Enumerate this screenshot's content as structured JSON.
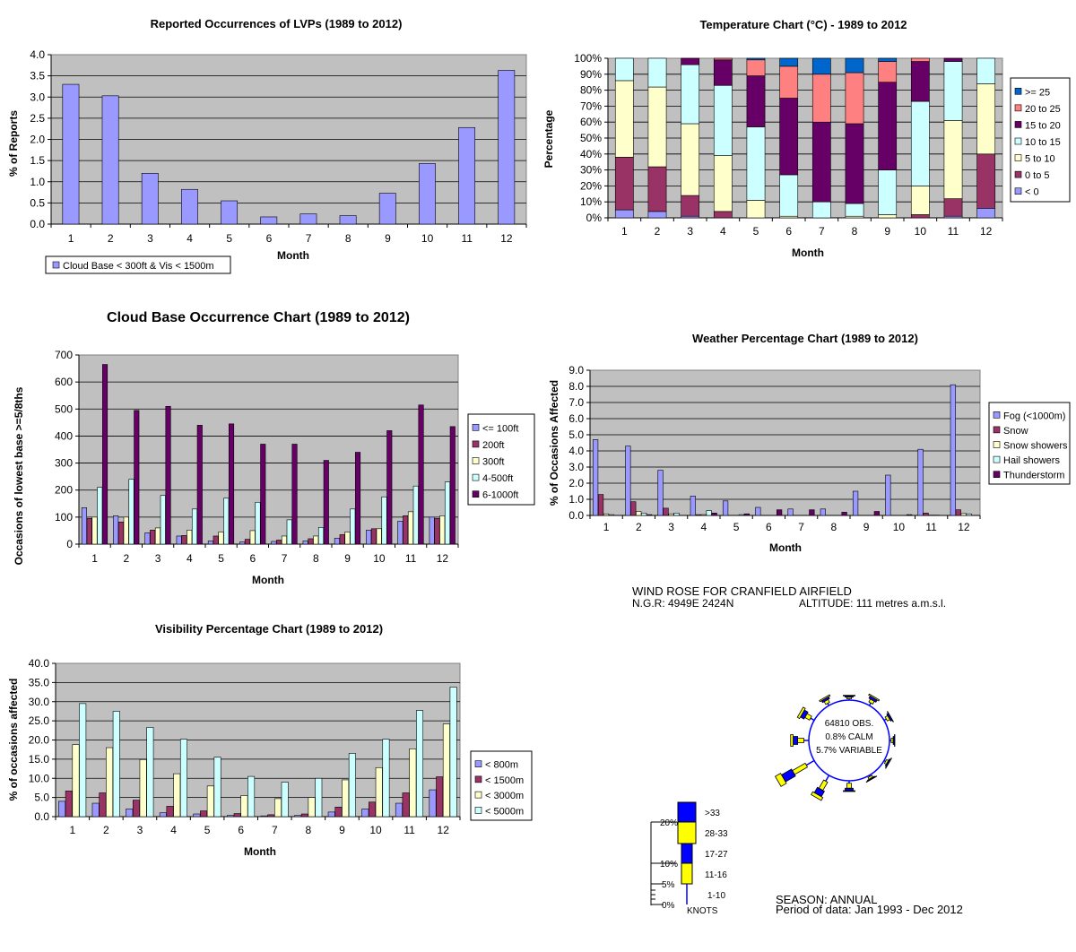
{
  "chart_data": [
    {
      "type": "bar",
      "title": "Reported Occurrences of LVPs (1989 to 2012)",
      "xlabel": "Month",
      "ylabel": "% of Reports",
      "categories": [
        "1",
        "2",
        "3",
        "4",
        "5",
        "6",
        "7",
        "8",
        "9",
        "10",
        "11",
        "12"
      ],
      "ylim": [
        0,
        4.0
      ],
      "yticks": [
        "0.0",
        "0.5",
        "1.0",
        "1.5",
        "2.0",
        "2.5",
        "3.0",
        "3.5",
        "4.0"
      ],
      "series": [
        {
          "name": "Cloud Base < 300ft & Vis < 1500m",
          "color": "#9999ff",
          "values": [
            3.3,
            3.03,
            1.2,
            0.82,
            0.55,
            0.17,
            0.24,
            0.2,
            0.73,
            1.43,
            2.28,
            3.63
          ]
        }
      ],
      "grid": true,
      "legend": "bottom-left"
    },
    {
      "type": "bar",
      "stacked": true,
      "title": "Temperature Chart (°C) - 1989 to 2012",
      "xlabel": "Month",
      "ylabel": "Percentage",
      "categories": [
        "1",
        "2",
        "3",
        "4",
        "5",
        "6",
        "7",
        "8",
        "9",
        "10",
        "11",
        "12"
      ],
      "ylim": [
        0,
        100
      ],
      "yticks": [
        "0%",
        "10%",
        "20%",
        "30%",
        "40%",
        "50%",
        "60%",
        "70%",
        "80%",
        "90%",
        "100%"
      ],
      "series": [
        {
          "name": "< 0",
          "color": "#9999ff",
          "values": [
            5,
            4,
            1,
            0,
            0,
            0,
            0,
            0,
            0,
            0,
            1,
            6
          ]
        },
        {
          "name": "0 to 5",
          "color": "#993366",
          "values": [
            33,
            28,
            13,
            4,
            0,
            0,
            0,
            0,
            0,
            2,
            11,
            34
          ]
        },
        {
          "name": "5 to 10",
          "color": "#ffffcc",
          "values": [
            48,
            50,
            45,
            35,
            11,
            1,
            0,
            1,
            2,
            18,
            49,
            44
          ]
        },
        {
          "name": "10 to 15",
          "color": "#ccffff",
          "values": [
            14,
            18,
            37,
            44,
            46,
            26,
            10,
            8,
            28,
            53,
            37,
            16
          ]
        },
        {
          "name": "15 to 20",
          "color": "#660066",
          "values": [
            0,
            0,
            4,
            16,
            32,
            48,
            50,
            50,
            55,
            25,
            2,
            0
          ]
        },
        {
          "name": "20 to 25",
          "color": "#ff8080",
          "values": [
            0,
            0,
            0,
            1,
            10,
            20,
            30,
            32,
            13,
            2,
            0,
            0
          ]
        },
        {
          "name": ">= 25",
          "color": "#0066cc",
          "values": [
            0,
            0,
            0,
            0,
            1,
            5,
            10,
            9,
            2,
            0,
            0,
            0
          ]
        }
      ],
      "legend_order": [
        ">= 25",
        "20 to 25",
        "15 to 20",
        "10 to 15",
        "5 to 10",
        "0 to 5",
        "< 0"
      ],
      "grid": true,
      "legend": "right"
    },
    {
      "type": "bar",
      "title": "Cloud Base Occurrence Chart (1989 to 2012)",
      "xlabel": "Month",
      "ylabel": "Occasions of lowest base >=5/8ths",
      "categories": [
        "1",
        "2",
        "3",
        "4",
        "5",
        "6",
        "7",
        "8",
        "9",
        "10",
        "11",
        "12"
      ],
      "ylim": [
        0,
        700
      ],
      "yticks": [
        "0",
        "100",
        "200",
        "300",
        "400",
        "500",
        "600",
        "700"
      ],
      "series": [
        {
          "name": "<= 100ft",
          "color": "#9999ff",
          "values": [
            135,
            105,
            42,
            30,
            12,
            8,
            10,
            12,
            22,
            52,
            85,
            100
          ]
        },
        {
          "name": "200ft",
          "color": "#993366",
          "values": [
            95,
            82,
            52,
            32,
            30,
            18,
            15,
            20,
            35,
            57,
            105,
            95
          ]
        },
        {
          "name": "300ft",
          "color": "#ffffcc",
          "values": [
            100,
            100,
            60,
            52,
            45,
            50,
            30,
            30,
            45,
            57,
            120,
            105
          ]
        },
        {
          "name": "4-500ft",
          "color": "#ccffff",
          "values": [
            210,
            240,
            180,
            130,
            170,
            155,
            90,
            62,
            130,
            175,
            215,
            230
          ]
        },
        {
          "name": "6-1000ft",
          "color": "#660066",
          "values": [
            665,
            495,
            510,
            440,
            445,
            370,
            370,
            310,
            340,
            420,
            515,
            435
          ]
        }
      ],
      "grid": true,
      "legend": "right"
    },
    {
      "type": "bar",
      "title": "Weather Percentage Chart (1989 to 2012)",
      "xlabel": "Month",
      "ylabel": "% of Occasions Affected",
      "categories": [
        "1",
        "2",
        "3",
        "4",
        "5",
        "6",
        "7",
        "8",
        "9",
        "10",
        "11",
        "12"
      ],
      "ylim": [
        0,
        9.0
      ],
      "yticks": [
        "0.0",
        "1.0",
        "2.0",
        "3.0",
        "4.0",
        "5.0",
        "6.0",
        "7.0",
        "8.0",
        "9.0"
      ],
      "series": [
        {
          "name": "Fog (<1000m)",
          "color": "#9999ff",
          "values": [
            4.7,
            4.3,
            2.8,
            1.2,
            0.9,
            0.5,
            0.4,
            0.4,
            1.5,
            2.5,
            4.1,
            8.1
          ]
        },
        {
          "name": "Snow",
          "color": "#993366",
          "values": [
            1.3,
            0.85,
            0.45,
            0.05,
            0,
            0,
            0,
            0,
            0,
            0,
            0.15,
            0.35
          ]
        },
        {
          "name": "Snow showers",
          "color": "#ffffcc",
          "values": [
            0.1,
            0.25,
            0.1,
            0.05,
            0,
            0,
            0,
            0,
            0,
            0,
            0.02,
            0.12
          ]
        },
        {
          "name": "Hail showers",
          "color": "#ccffff",
          "values": [
            0.05,
            0.15,
            0.15,
            0.3,
            0.05,
            0,
            0,
            0,
            0,
            0,
            0.02,
            0.1
          ]
        },
        {
          "name": "Thunderstorm",
          "color": "#660066",
          "values": [
            0,
            0.05,
            0,
            0.15,
            0.1,
            0.35,
            0.35,
            0.2,
            0.25,
            0.05,
            0,
            0
          ]
        }
      ],
      "grid": true,
      "legend": "right"
    },
    {
      "type": "bar",
      "title": "Visibility Percentage Chart (1989 to 2012)",
      "xlabel": "Month",
      "ylabel": "% of occasions affected",
      "categories": [
        "1",
        "2",
        "3",
        "4",
        "5",
        "6",
        "7",
        "8",
        "9",
        "10",
        "11",
        "12"
      ],
      "ylim": [
        0,
        40.0
      ],
      "yticks": [
        "0.0",
        "5.0",
        "10.0",
        "15.0",
        "20.0",
        "25.0",
        "30.0",
        "35.0",
        "40.0"
      ],
      "series": [
        {
          "name": "< 800m",
          "color": "#9999ff",
          "values": [
            4.0,
            3.5,
            2.0,
            1.0,
            0.7,
            0.3,
            0.2,
            0.3,
            1.2,
            2.0,
            3.5,
            7.0
          ]
        },
        {
          "name": "< 1500m",
          "color": "#993366",
          "values": [
            6.7,
            6.2,
            4.3,
            2.7,
            1.5,
            0.8,
            0.5,
            0.7,
            2.5,
            3.8,
            6.2,
            10.4
          ]
        },
        {
          "name": "< 3000m",
          "color": "#ffffcc",
          "values": [
            18.8,
            18.0,
            14.9,
            11.2,
            8.0,
            5.5,
            4.7,
            5.0,
            9.6,
            12.8,
            17.7,
            24.2
          ]
        },
        {
          "name": "< 5000m",
          "color": "#ccffff",
          "values": [
            29.5,
            27.5,
            23.3,
            20.2,
            15.5,
            10.5,
            9.0,
            10.0,
            16.5,
            20.2,
            27.7,
            33.8
          ]
        }
      ],
      "grid": true,
      "legend": "right"
    }
  ],
  "wind_rose": {
    "title": "WIND ROSE FOR CRANFIELD AIRFIELD",
    "ngr": "N.G.R: 4949E 2424N",
    "altitude": "ALTITUDE:  111 metres a.m.s.l.",
    "center_lines": [
      "64810 OBS.",
      "0.8% CALM",
      "5.7% VARIABLE"
    ],
    "season": "SEASON:  ANNUAL",
    "period": "Period of data:  Jan 1993 - Dec 2012",
    "scale_labels": [
      "20%",
      "10%",
      "5%",
      "0%"
    ],
    "speed_labels": [
      ">33",
      "28-33",
      "17-27",
      "11-16",
      "1-10"
    ],
    "units_label": "KNOTS",
    "colors": {
      "blue": "#0000ff",
      "yellow": "#ffff00"
    },
    "directions_deg": [
      0,
      30,
      60,
      90,
      120,
      150,
      180,
      210,
      240,
      270,
      300,
      330
    ],
    "segments_percent": [
      [
        0.3,
        0.4,
        0.3,
        0.2
      ],
      [
        0.7,
        0.8,
        0.6,
        0.3
      ],
      [
        0.6,
        0.7,
        0.4,
        0.1
      ],
      [
        0.4,
        0.5,
        0.3,
        0.1
      ],
      [
        0.4,
        0.5,
        0.3,
        0.1
      ],
      [
        0.3,
        0.5,
        0.2,
        0.1
      ],
      [
        0.6,
        1.2,
        0.6,
        0.2
      ],
      [
        1.6,
        2.3,
        1.5,
        0.8
      ],
      [
        2.2,
        3.6,
        2.8,
        1.5
      ],
      [
        1.2,
        1.5,
        1.1,
        0.6
      ],
      [
        1.0,
        1.3,
        1.0,
        0.6
      ],
      [
        0.6,
        0.8,
        0.5,
        0.3
      ]
    ]
  }
}
